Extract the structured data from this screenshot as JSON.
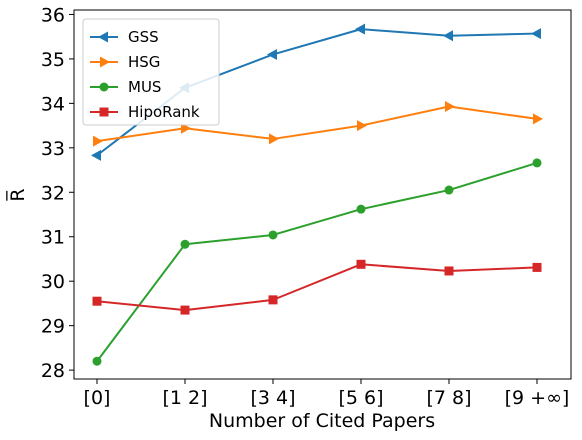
{
  "chart_data": {
    "type": "line",
    "title": "",
    "xlabel": "Number of Cited Papers",
    "ylabel": "R̅",
    "categories": [
      "[0]",
      "[1 2]",
      "[3 4]",
      "[5 6]",
      "[7 8]",
      "[9 +∞]"
    ],
    "ylim": [
      27.8,
      36.1
    ],
    "yticks": [
      28,
      29,
      30,
      31,
      32,
      33,
      34,
      35,
      36
    ],
    "grid": false,
    "legend": "top-left",
    "series": [
      {
        "name": "GSS",
        "color": "#1f77b4",
        "marker": "triangle-left",
        "values": [
          32.83,
          34.35,
          35.1,
          35.67,
          35.52,
          35.57
        ]
      },
      {
        "name": "HSG",
        "color": "#ff7f0e",
        "marker": "triangle-right",
        "values": [
          33.15,
          33.44,
          33.2,
          33.5,
          33.93,
          33.65
        ]
      },
      {
        "name": "MUS",
        "color": "#2ca02c",
        "marker": "circle",
        "values": [
          28.2,
          30.83,
          31.04,
          31.62,
          32.05,
          32.66
        ]
      },
      {
        "name": "HipoRank",
        "color": "#d62728",
        "marker": "square",
        "values": [
          29.55,
          29.35,
          29.58,
          30.38,
          30.23,
          30.31
        ]
      }
    ]
  }
}
